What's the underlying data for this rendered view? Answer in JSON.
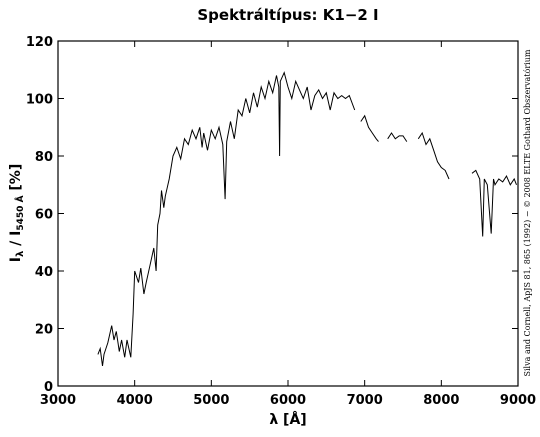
{
  "chart_data": {
    "type": "line",
    "title": "Spektráltípus: K1−2 I",
    "xlabel": "λ [Å]",
    "ylabel_parts": [
      "I",
      "λ",
      " / I",
      "5450 Å",
      " [%]"
    ],
    "credit": "Silva and Cornell, ApJS 81, 865 (1992) − © 2008 ELTE Gothard Obszervatórium",
    "xlim": [
      3000,
      9000
    ],
    "xticks": [
      3000,
      4000,
      5000,
      6000,
      7000,
      8000,
      9000
    ],
    "ylim": [
      0,
      120
    ],
    "yticks": [
      0,
      20,
      40,
      60,
      80,
      100,
      120
    ],
    "x": [
      3520,
      3550,
      3580,
      3600,
      3650,
      3700,
      3730,
      3760,
      3800,
      3830,
      3870,
      3900,
      3950,
      3980,
      4000,
      4050,
      4080,
      4120,
      4150,
      4200,
      4250,
      4280,
      4300,
      4330,
      4350,
      4380,
      4400,
      4450,
      4500,
      4550,
      4600,
      4650,
      4700,
      4750,
      4800,
      4850,
      4880,
      4900,
      4950,
      5000,
      5050,
      5100,
      5150,
      5180,
      5200,
      5250,
      5300,
      5350,
      5400,
      5450,
      5500,
      5550,
      5600,
      5650,
      5700,
      5750,
      5800,
      5850,
      5880,
      5890,
      5900,
      5950,
      6000,
      6050,
      6100,
      6150,
      6200,
      6250,
      6300,
      6350,
      6400,
      6450,
      6500,
      6550,
      6600,
      6650,
      6700,
      6750,
      6800,
      6870,
      6900,
      6950,
      7000,
      7050,
      7100,
      7150,
      7180,
      7250,
      7300,
      7350,
      7400,
      7450,
      7500,
      7550,
      7600,
      7700,
      7750,
      7800,
      7850,
      7900,
      7950,
      8000,
      8050,
      8100,
      8200,
      8400,
      8450,
      8500,
      8540,
      8560,
      8600,
      8650,
      8680,
      8700,
      8750,
      8800,
      8850,
      8900,
      8950,
      8980
    ],
    "series": [
      {
        "name": "K1-2 I",
        "color": "#000000",
        "values": [
          11,
          13,
          7,
          11,
          15,
          21,
          16,
          19,
          12,
          16,
          10,
          16,
          10,
          25,
          40,
          36,
          41,
          32,
          36,
          42,
          48,
          40,
          56,
          60,
          68,
          62,
          66,
          72,
          80,
          83,
          79,
          86,
          84,
          89,
          86,
          90,
          83,
          88,
          82,
          89,
          86,
          90,
          84,
          65,
          85,
          92,
          86,
          96,
          94,
          100,
          95,
          102,
          97,
          104,
          100,
          106,
          102,
          108,
          104,
          80,
          106,
          109,
          104,
          100,
          106,
          103,
          100,
          104,
          96,
          101,
          103,
          100,
          102,
          96,
          102,
          100,
          101,
          100,
          101,
          96,
          null,
          92,
          94,
          90,
          88,
          86,
          85,
          null,
          86,
          88,
          86,
          87,
          87,
          85,
          null,
          86,
          88,
          84,
          86,
          82,
          78,
          76,
          75,
          72,
          null,
          74,
          75,
          72,
          52,
          72,
          70,
          53,
          72,
          70,
          72,
          71,
          73,
          70,
          72,
          70
        ]
      }
    ]
  }
}
